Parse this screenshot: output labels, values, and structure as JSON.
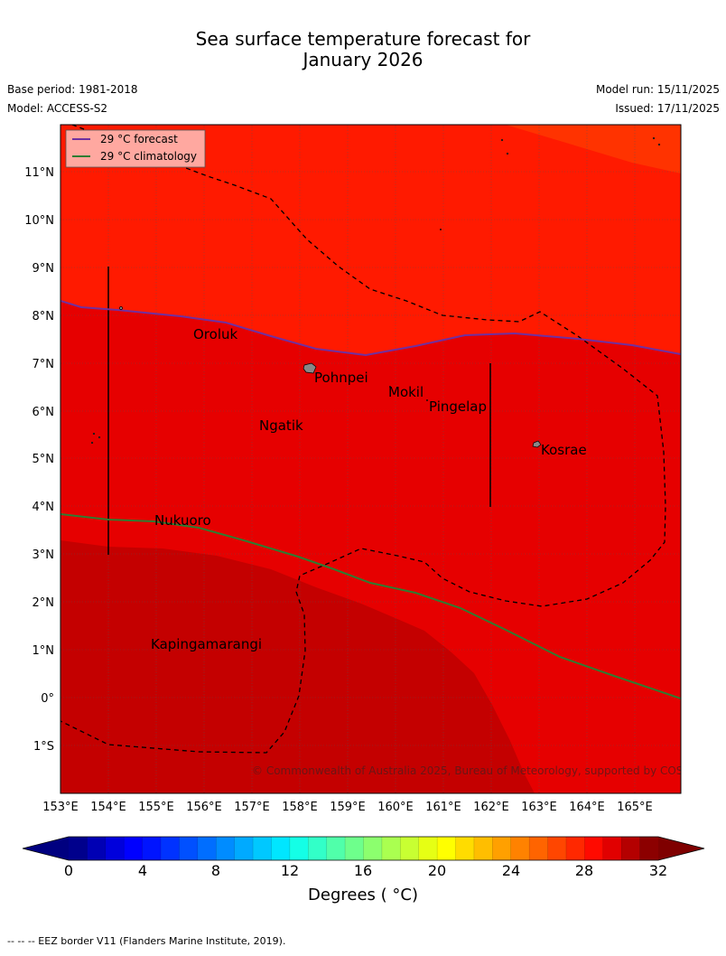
{
  "title": {
    "line1": "Sea surface temperature forecast for",
    "line2": "January 2026"
  },
  "meta": {
    "base_period": "Base period: 1981-2018",
    "model": "Model: ACCESS-S2",
    "model_run": "Model run: 15/11/2025",
    "issued": "Issued: 17/11/2025"
  },
  "map": {
    "lon_range": [
      153,
      166
    ],
    "lat_range": [
      -2,
      12
    ],
    "lon_ticks": [
      "153°E",
      "154°E",
      "155°E",
      "156°E",
      "157°E",
      "158°E",
      "159°E",
      "160°E",
      "161°E",
      "162°E",
      "163°E",
      "164°E",
      "165°E"
    ],
    "lat_ticks": [
      "11°N",
      "10°N",
      "9°N",
      "8°N",
      "7°N",
      "6°N",
      "5°N",
      "4°N",
      "3°N",
      "2°N",
      "1°N",
      "0°",
      "1°S"
    ],
    "legend": {
      "forecast": "29 °C  forecast",
      "climatology": "29 °C  climatology",
      "forecast_color": "#7030a0",
      "climatology_color": "#2e7d32"
    },
    "places": [
      {
        "name": "Oroluk",
        "lon": 155.8,
        "lat": 7.5
      },
      {
        "name": "Pohnpei",
        "lon": 158.4,
        "lat": 6.8
      },
      {
        "name": "Mokil",
        "lon": 159.8,
        "lat": 6.3
      },
      {
        "name": "Pingelap",
        "lon": 160.8,
        "lat": 6.0
      },
      {
        "name": "Ngatik",
        "lon": 157.2,
        "lat": 5.6
      },
      {
        "name": "Kosrae",
        "lon": 163.0,
        "lat": 5.1
      },
      {
        "name": "Nukuoro",
        "lon": 155.0,
        "lat": 3.6
      },
      {
        "name": "Kapingamarangi",
        "lon": 154.9,
        "lat": 1.0
      }
    ],
    "copyright": "© Commonwealth of Australia 2025, Bureau of Meteorology, supported by COSPPac",
    "colors": {
      "temp_31": "#c40000",
      "temp_30": "#e60000",
      "temp_29": "#ff1a00",
      "temp_28": "#ff3300"
    }
  },
  "colorbar": {
    "tick_labels": [
      "0",
      "4",
      "8",
      "12",
      "16",
      "20",
      "24",
      "28",
      "32"
    ],
    "title": "Degrees ( °C)",
    "colors": [
      "#00008c",
      "#0000b4",
      "#0000dc",
      "#0000ff",
      "#0014ff",
      "#0032ff",
      "#0050ff",
      "#006eff",
      "#008cff",
      "#00aaff",
      "#00c8ff",
      "#00e6ff",
      "#14ffe6",
      "#32ffc8",
      "#50ffaa",
      "#6eff8c",
      "#8cff6e",
      "#aaff50",
      "#c8ff32",
      "#e6ff14",
      "#ffff00",
      "#ffdc00",
      "#ffbe00",
      "#ffa000",
      "#ff8200",
      "#ff6400",
      "#ff4600",
      "#ff2800",
      "#ff0a00",
      "#e10000",
      "#b40000",
      "#8c0000"
    ],
    "under_color": "#000080",
    "over_color": "#7f0000"
  },
  "footer": "--  --  -- EEZ border V11 (Flanders Marine Institute, 2019)."
}
